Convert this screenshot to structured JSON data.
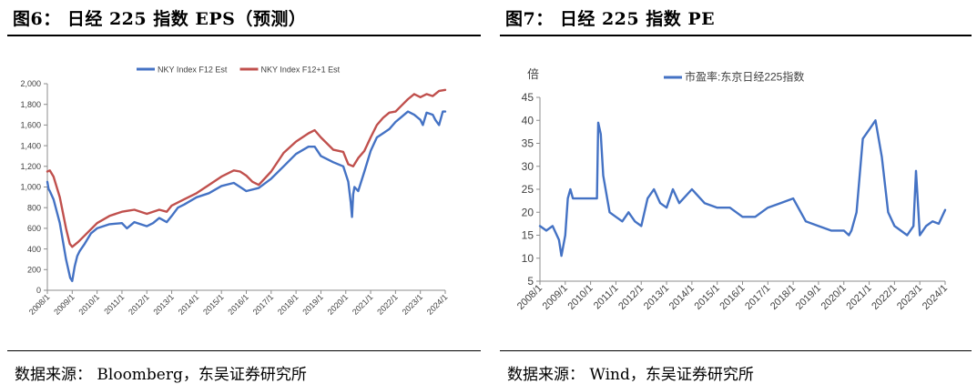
{
  "left": {
    "title": "图6：  日经 225 指数 EPS（预测）",
    "source": "数据来源：  Bloomberg，东吴证券研究所"
  },
  "right": {
    "title": "图7：  日经 225 指数 PE",
    "source": "数据来源：  Wind，东吴证券研究所"
  },
  "chart_data": [
    {
      "type": "line",
      "title": "",
      "xlabel": "",
      "ylabel": "",
      "ylim": [
        0,
        2000
      ],
      "yticks": [
        0,
        200,
        400,
        600,
        800,
        1000,
        1200,
        1400,
        1600,
        1800,
        2000
      ],
      "ytick_labels": [
        "0",
        "200",
        "400",
        "600",
        "800",
        "1,000",
        "1,200",
        "1,400",
        "1,600",
        "1,800",
        "2,000"
      ],
      "xlim": [
        2008.0,
        2024.0
      ],
      "xtick_labels": [
        "2008/1",
        "2009/1",
        "2010/1",
        "2011/1",
        "2012/1",
        "2013/1",
        "2014/1",
        "2015/1",
        "2016/1",
        "2017/1",
        "2018/1",
        "2019/1",
        "2020/1",
        "2021/1",
        "2022/1",
        "2023/1",
        "2024/1"
      ],
      "legend_position": "top",
      "grid": false,
      "series": [
        {
          "name": "NKY Index F12 Est",
          "color": "#4472C4",
          "x": [
            2008.0,
            2008.05,
            2008.1,
            2008.25,
            2008.5,
            2008.75,
            2008.92,
            2009.0,
            2009.1,
            2009.2,
            2009.3,
            2009.5,
            2009.75,
            2010.0,
            2010.5,
            2011.0,
            2011.2,
            2011.5,
            2011.75,
            2012.0,
            2012.25,
            2012.5,
            2012.8,
            2013.0,
            2013.25,
            2013.5,
            2014.0,
            2014.5,
            2015.0,
            2015.5,
            2015.75,
            2016.0,
            2016.5,
            2017.0,
            2017.5,
            2018.0,
            2018.5,
            2018.75,
            2019.0,
            2019.5,
            2019.9,
            2020.1,
            2020.2,
            2020.25,
            2020.3,
            2020.35,
            2020.5,
            2020.75,
            2021.0,
            2021.25,
            2021.5,
            2021.75,
            2022.0,
            2022.25,
            2022.5,
            2022.75,
            2023.0,
            2023.1,
            2023.25,
            2023.5,
            2023.6,
            2023.75,
            2023.9,
            2024.0
          ],
          "y": [
            1050,
            980,
            960,
            880,
            650,
            300,
            120,
            90,
            230,
            330,
            380,
            450,
            550,
            600,
            640,
            650,
            600,
            660,
            640,
            620,
            650,
            700,
            660,
            720,
            800,
            830,
            900,
            940,
            1010,
            1040,
            1000,
            960,
            990,
            1080,
            1200,
            1320,
            1390,
            1390,
            1300,
            1240,
            1200,
            1050,
            850,
            710,
            930,
            1000,
            960,
            1150,
            1350,
            1480,
            1520,
            1560,
            1630,
            1680,
            1730,
            1700,
            1650,
            1600,
            1720,
            1700,
            1650,
            1600,
            1730,
            1730
          ]
        },
        {
          "name": "NKY Index F12+1 Est",
          "color": "#C0504D",
          "x": [
            2008.0,
            2008.1,
            2008.25,
            2008.5,
            2008.75,
            2008.9,
            2009.0,
            2009.25,
            2009.5,
            2010.0,
            2010.5,
            2011.0,
            2011.25,
            2011.5,
            2012.0,
            2012.5,
            2012.8,
            2013.0,
            2013.5,
            2014.0,
            2014.5,
            2015.0,
            2015.5,
            2015.75,
            2016.0,
            2016.25,
            2016.5,
            2017.0,
            2017.5,
            2018.0,
            2018.5,
            2018.75,
            2019.0,
            2019.5,
            2019.9,
            2020.1,
            2020.3,
            2020.5,
            2020.75,
            2021.0,
            2021.25,
            2021.5,
            2021.75,
            2022.0,
            2022.25,
            2022.5,
            2022.75,
            2023.0,
            2023.25,
            2023.5,
            2023.75,
            2024.0
          ],
          "y": [
            1150,
            1160,
            1100,
            900,
            600,
            450,
            420,
            470,
            530,
            650,
            720,
            760,
            770,
            780,
            740,
            780,
            760,
            820,
            880,
            940,
            1020,
            1100,
            1160,
            1150,
            1110,
            1050,
            1020,
            1150,
            1330,
            1440,
            1520,
            1550,
            1480,
            1360,
            1340,
            1220,
            1200,
            1280,
            1350,
            1480,
            1600,
            1670,
            1720,
            1730,
            1790,
            1850,
            1900,
            1870,
            1900,
            1880,
            1930,
            1940
          ]
        }
      ]
    },
    {
      "type": "line",
      "title": "",
      "xlabel": "",
      "ylabel": "倍",
      "ylim": [
        5,
        45
      ],
      "yticks": [
        5,
        10,
        15,
        20,
        25,
        30,
        35,
        40,
        45
      ],
      "xlim": [
        2008.0,
        2024.0
      ],
      "xtick_labels": [
        "2008/1",
        "2009/1",
        "2010/1",
        "2011/1",
        "2012/1",
        "2013/1",
        "2014/1",
        "2015/1",
        "2016/1",
        "2017/1",
        "2018/1",
        "2019/1",
        "2020/1",
        "2021/1",
        "2022/1",
        "2023/1",
        "2024/1"
      ],
      "legend_position": "top",
      "grid": false,
      "series": [
        {
          "name": "市盈率:东京日经225指数",
          "color": "#4472C4",
          "x": [
            2008.0,
            2008.25,
            2008.5,
            2008.75,
            2008.85,
            2009.0,
            2009.1,
            2009.2,
            2009.3,
            2009.5,
            2010.0,
            2010.25,
            2010.3,
            2010.4,
            2010.5,
            2010.75,
            2011.0,
            2011.25,
            2011.5,
            2011.75,
            2012.0,
            2012.25,
            2012.5,
            2012.75,
            2013.0,
            2013.25,
            2013.5,
            2014.0,
            2014.5,
            2015.0,
            2015.5,
            2016.0,
            2016.5,
            2017.0,
            2017.5,
            2018.0,
            2018.5,
            2019.0,
            2019.5,
            2020.0,
            2020.2,
            2020.3,
            2020.5,
            2020.75,
            2021.0,
            2021.25,
            2021.5,
            2021.75,
            2022.0,
            2022.25,
            2022.5,
            2022.75,
            2022.85,
            2023.0,
            2023.25,
            2023.5,
            2023.75,
            2024.0
          ],
          "y": [
            17,
            16,
            17,
            14,
            10.5,
            15,
            23,
            25,
            23,
            23,
            23,
            23,
            39.5,
            37,
            28,
            20,
            19,
            18,
            20,
            18,
            17,
            23,
            25,
            22,
            21,
            25,
            22,
            25,
            22,
            21,
            21,
            19,
            19,
            21,
            22,
            23,
            18,
            17,
            16,
            16,
            15,
            16,
            20,
            36,
            38,
            40,
            32,
            20,
            17,
            16,
            15,
            17,
            29,
            15,
            17,
            18,
            17.5,
            20.5
          ]
        }
      ]
    }
  ]
}
